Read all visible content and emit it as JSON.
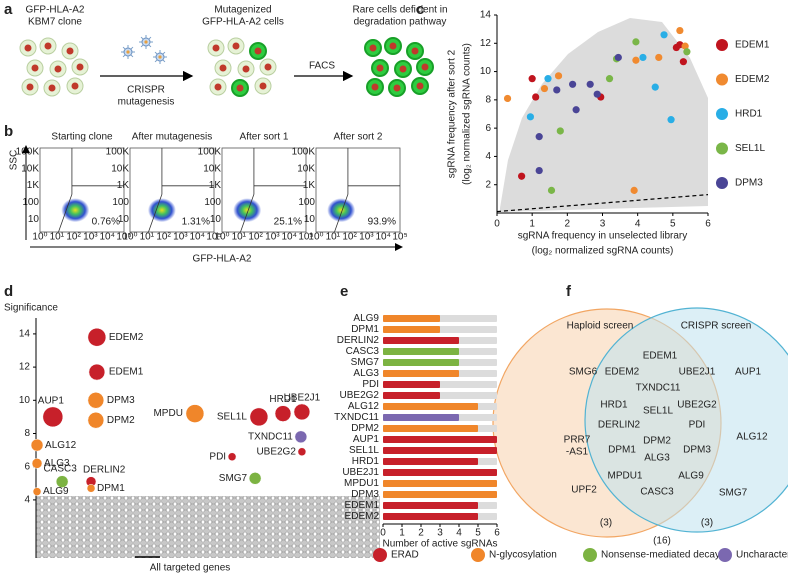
{
  "panel_a": {
    "label": "a",
    "start_label": [
      "GFP-HLA-A2",
      "KBM7 clone"
    ],
    "mutagenized_label": [
      "Mutagenized",
      "GFP-HLA-A2 cells"
    ],
    "rare_label": [
      "Rare cells deficient in",
      "degradation pathway"
    ],
    "crispr_label": [
      "CRISPR",
      "mutagenesis"
    ],
    "facs_label": "FACS"
  },
  "panel_b": {
    "label": "b",
    "y_axis_label": "SSC",
    "x_axis_label": "GFP-HLA-A2",
    "x_tick_labels": [
      "10⁰",
      "10¹",
      "10²",
      "10³",
      "10⁴",
      "10⁵"
    ],
    "y_tick_labels": [
      "100K",
      "10K",
      "1K",
      "100",
      "10"
    ],
    "plots": [
      {
        "title": "Starting clone",
        "percent": "0.76%"
      },
      {
        "title": "After mutagenesis",
        "percent": "1.31%"
      },
      {
        "title": "After sort 1",
        "percent": "25.1%"
      },
      {
        "title": "After sort 2",
        "percent": "93.9%"
      }
    ]
  },
  "chart_data": [
    {
      "type": "scatter",
      "label": "c",
      "xlabel": [
        "sgRNA frequency in unselected library",
        "(log₂ normalized sgRNA counts)"
      ],
      "ylabel": [
        "sgRNA frequency after sort 2",
        "(log₂ normalized sgRNA counts)"
      ],
      "xlim": [
        0,
        6
      ],
      "ylim": [
        0,
        14
      ],
      "xticks": [
        0,
        1,
        2,
        3,
        4,
        5,
        6
      ],
      "yticks": [
        2,
        4,
        6,
        8,
        10,
        12,
        14
      ],
      "legend": "right",
      "threshold": {
        "x": [
          0,
          6
        ],
        "y": [
          0.1,
          1.3
        ]
      },
      "series": [
        {
          "name": "EDEM1",
          "color": "#c0141e",
          "x": [
            0.7,
            1.0,
            1.1,
            2.95,
            5.1,
            5.2,
            5.3
          ],
          "y": [
            2.6,
            9.5,
            8.2,
            8.2,
            11.7,
            11.9,
            10.7
          ]
        },
        {
          "name": "EDEM2",
          "color": "#f08a30",
          "x": [
            0.3,
            1.35,
            1.75,
            3.9,
            5.2,
            5.35,
            4.6,
            3.95
          ],
          "y": [
            8.1,
            8.8,
            9.7,
            1.6,
            12.9,
            11.8,
            11.0,
            10.8
          ]
        },
        {
          "name": "HRD1",
          "color": "#29aee6",
          "x": [
            0.95,
            1.45,
            4.15,
            4.75,
            4.95,
            4.5
          ],
          "y": [
            6.8,
            9.5,
            11.0,
            12.6,
            6.6,
            8.9
          ]
        },
        {
          "name": "SEL1L",
          "color": "#7ab648",
          "x": [
            1.55,
            1.8,
            3.4,
            3.95,
            5.4,
            3.2
          ],
          "y": [
            1.6,
            5.8,
            10.9,
            12.1,
            11.4,
            9.5
          ]
        },
        {
          "name": "DPM3",
          "color": "#4a4596",
          "x": [
            1.2,
            1.2,
            1.7,
            2.25,
            2.15,
            2.65,
            2.85,
            3.45
          ],
          "y": [
            5.4,
            3.0,
            8.7,
            7.3,
            9.1,
            9.1,
            8.4,
            11.0
          ]
        }
      ]
    },
    {
      "type": "bubble",
      "label": "d",
      "ylabel": "Significance",
      "xlabel": "All targeted genes",
      "xlim": [
        0,
        100
      ],
      "ylim": [
        0.5,
        15.5
      ],
      "yticks": [
        4,
        6,
        8,
        10,
        12,
        14
      ],
      "names": [
        "EDEM2",
        "EDEM1",
        "AUP1",
        "DPM3",
        "DPM2",
        "MPDU",
        "SEL1L",
        "HRD1",
        "UBE2J1",
        "ALG12",
        "ALG3",
        "TXNDC11",
        "UBE2G2",
        "PDI",
        "CASC3",
        "DERLIN2",
        "DPM1",
        "SMG7",
        "ALG9"
      ],
      "x": [
        17.7,
        17.7,
        4.9,
        17.4,
        17.4,
        46.2,
        64.8,
        71.8,
        77.3,
        0.3,
        0.3,
        77.0,
        77.3,
        57.0,
        7.6,
        16.0,
        16.0,
        63.7,
        0.3
      ],
      "y": [
        13.8,
        11.7,
        9.0,
        10.0,
        8.8,
        9.2,
        9.0,
        9.2,
        9.3,
        7.3,
        6.2,
        7.8,
        6.9,
        6.6,
        5.1,
        5.1,
        4.7,
        5.3,
        4.5
      ],
      "sizes": [
        9,
        8,
        10,
        8,
        8,
        9,
        9,
        8,
        8,
        6,
        5,
        6,
        4,
        4,
        6,
        5,
        4,
        6,
        4
      ],
      "groups": [
        0,
        0,
        0,
        1,
        1,
        1,
        0,
        0,
        0,
        1,
        1,
        3,
        0,
        0,
        2,
        0,
        1,
        2,
        1
      ]
    },
    {
      "type": "bar",
      "orientation": "horizontal",
      "label": "e",
      "xlabel": "Number of active sgRNAs",
      "xlim": [
        0,
        6
      ],
      "xticks": [
        0,
        1,
        2,
        3,
        4,
        5,
        6
      ],
      "categories": [
        "ALG9",
        "DPM1",
        "DERLIN2",
        "CASC3",
        "SMG7",
        "ALG3",
        "PDI",
        "UBE2G2",
        "ALG12",
        "TXNDC11",
        "DPM2",
        "AUP1",
        "SEL1L",
        "HRD1",
        "UBE2J1",
        "MPDU1",
        "DPM3",
        "EDEM1",
        "EDEM2"
      ],
      "values": [
        3,
        3,
        4,
        4,
        4,
        4,
        3,
        3,
        5,
        4,
        5,
        6,
        6,
        5,
        6,
        6,
        6,
        5,
        5
      ],
      "groups": [
        1,
        1,
        0,
        2,
        2,
        1,
        0,
        0,
        1,
        3,
        1,
        0,
        0,
        0,
        0,
        1,
        1,
        0,
        0
      ]
    }
  ],
  "panel_f": {
    "label": "f",
    "left_title": "Haploid screen",
    "right_title": "CRISPR screen",
    "left_only": [
      {
        "lines": [
          "SMG6"
        ],
        "group": 2
      },
      {
        "lines": [
          "PRR7",
          "-AS1"
        ],
        "group": 3
      },
      {
        "lines": [
          "UPF2"
        ],
        "group": 2
      }
    ],
    "shared": [
      {
        "lines": [
          "EDEM1"
        ],
        "group": 0
      },
      {
        "lines": [
          "EDEM2"
        ],
        "group": 0
      },
      {
        "lines": [
          "UBE2J1"
        ],
        "group": 0
      },
      {
        "lines": [
          "TXNDC11"
        ],
        "group": 3
      },
      {
        "lines": [
          "HRD1"
        ],
        "group": 0
      },
      {
        "lines": [
          "UBE2G2"
        ],
        "group": 0
      },
      {
        "lines": [
          "SEL1L"
        ],
        "group": 0
      },
      {
        "lines": [
          "DERLIN2"
        ],
        "group": 0
      },
      {
        "lines": [
          "PDI"
        ],
        "group": 0
      },
      {
        "lines": [
          "DPM2"
        ],
        "group": 1
      },
      {
        "lines": [
          "DPM1"
        ],
        "group": 1
      },
      {
        "lines": [
          "ALG3"
        ],
        "group": 1
      },
      {
        "lines": [
          "DPM3"
        ],
        "group": 1
      },
      {
        "lines": [
          "MPDU1"
        ],
        "group": 1
      },
      {
        "lines": [
          "ALG9"
        ],
        "group": 1
      },
      {
        "lines": [
          "CASC3"
        ],
        "group": 2
      }
    ],
    "right_only": [
      {
        "lines": [
          "AUP1"
        ],
        "group": 0
      },
      {
        "lines": [
          "ALG12"
        ],
        "group": 1
      },
      {
        "lines": [
          "SMG7"
        ],
        "group": 2
      }
    ],
    "left_count": "(3)",
    "right_count": "(3)",
    "shared_count": "(16)"
  },
  "legend": {
    "items": [
      {
        "name": "ERAD",
        "color": "#c7202a"
      },
      {
        "name": "N-glycosylation",
        "color": "#f0862a"
      },
      {
        "name": "Nonsense-mediated decay",
        "color": "#7cb342"
      },
      {
        "name": "Uncharacterized",
        "color": "#7b68b0"
      }
    ]
  }
}
